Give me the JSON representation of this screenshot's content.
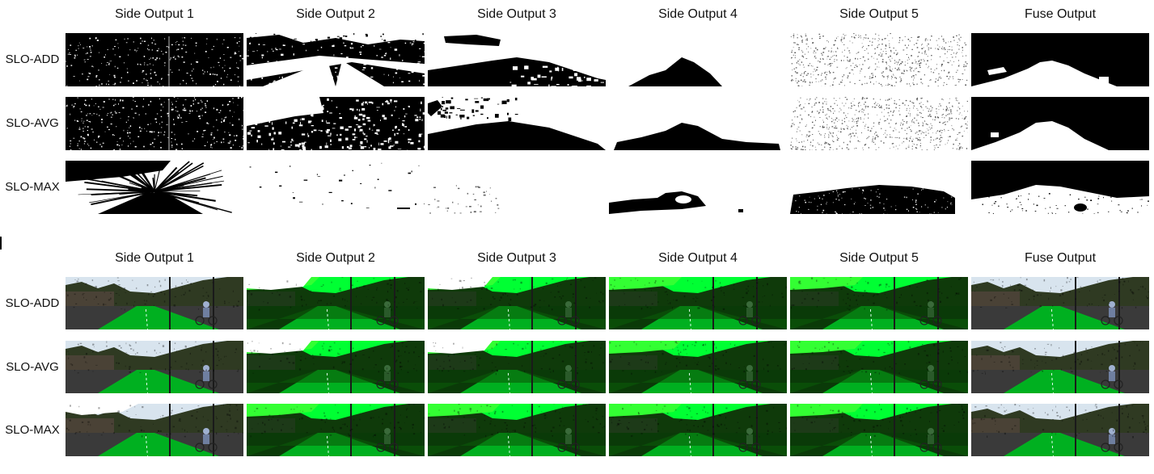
{
  "columns": [
    "Side Output 1",
    "Side Output 2",
    "Side Output 3",
    "Side Output 4",
    "Side Output 5",
    "Fuse Output"
  ],
  "rows": [
    "SLO-ADD",
    "SLO-AVG",
    "SLO-MAX"
  ],
  "panels": [
    {
      "type": "binary-mask-maps"
    },
    {
      "type": "green-overlay-road-images"
    }
  ]
}
